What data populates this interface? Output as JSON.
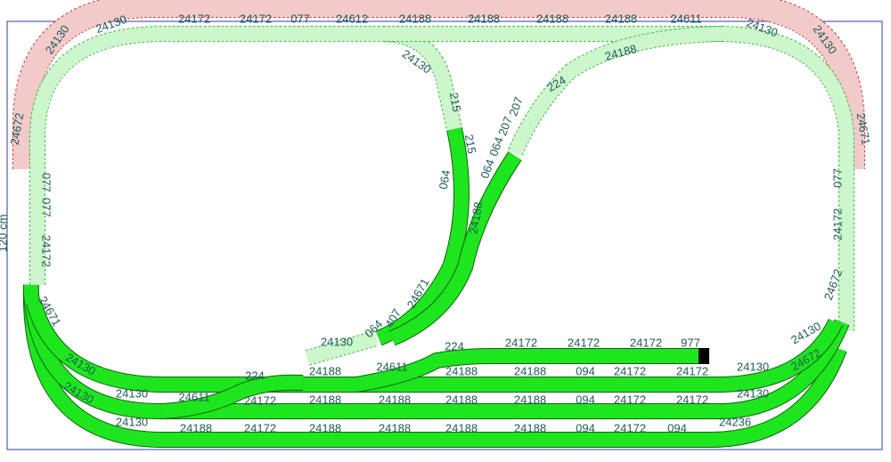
{
  "side_label": "120 cm",
  "labels": [
    "24130",
    "24130",
    "24172",
    "24172",
    "077",
    "24612",
    "24188",
    "24188",
    "24188",
    "24188",
    "24611",
    "24130",
    "24130",
    "24671",
    "24672",
    "077",
    "077",
    "24172",
    "077",
    "24172",
    "24672",
    "24130",
    "215",
    "215",
    "064",
    "064",
    "064",
    "207",
    "207",
    "224",
    "24188",
    "24188",
    "24671",
    "407",
    "064",
    "24130",
    "24671",
    "24130",
    "24130",
    "24130",
    "24130",
    "24611",
    "224",
    "24172",
    "24188",
    "24172",
    "24188",
    "24611",
    "224",
    "24188",
    "24172",
    "24172",
    "24172",
    "977",
    "24188",
    "094",
    "24172",
    "24172",
    "24130",
    "24188",
    "24188",
    "24188",
    "24188",
    "094",
    "24172",
    "24172",
    "24130",
    "24130",
    "24672",
    "24236",
    "24188",
    "24188",
    "24188",
    "24188",
    "094",
    "24172",
    "094"
  ]
}
